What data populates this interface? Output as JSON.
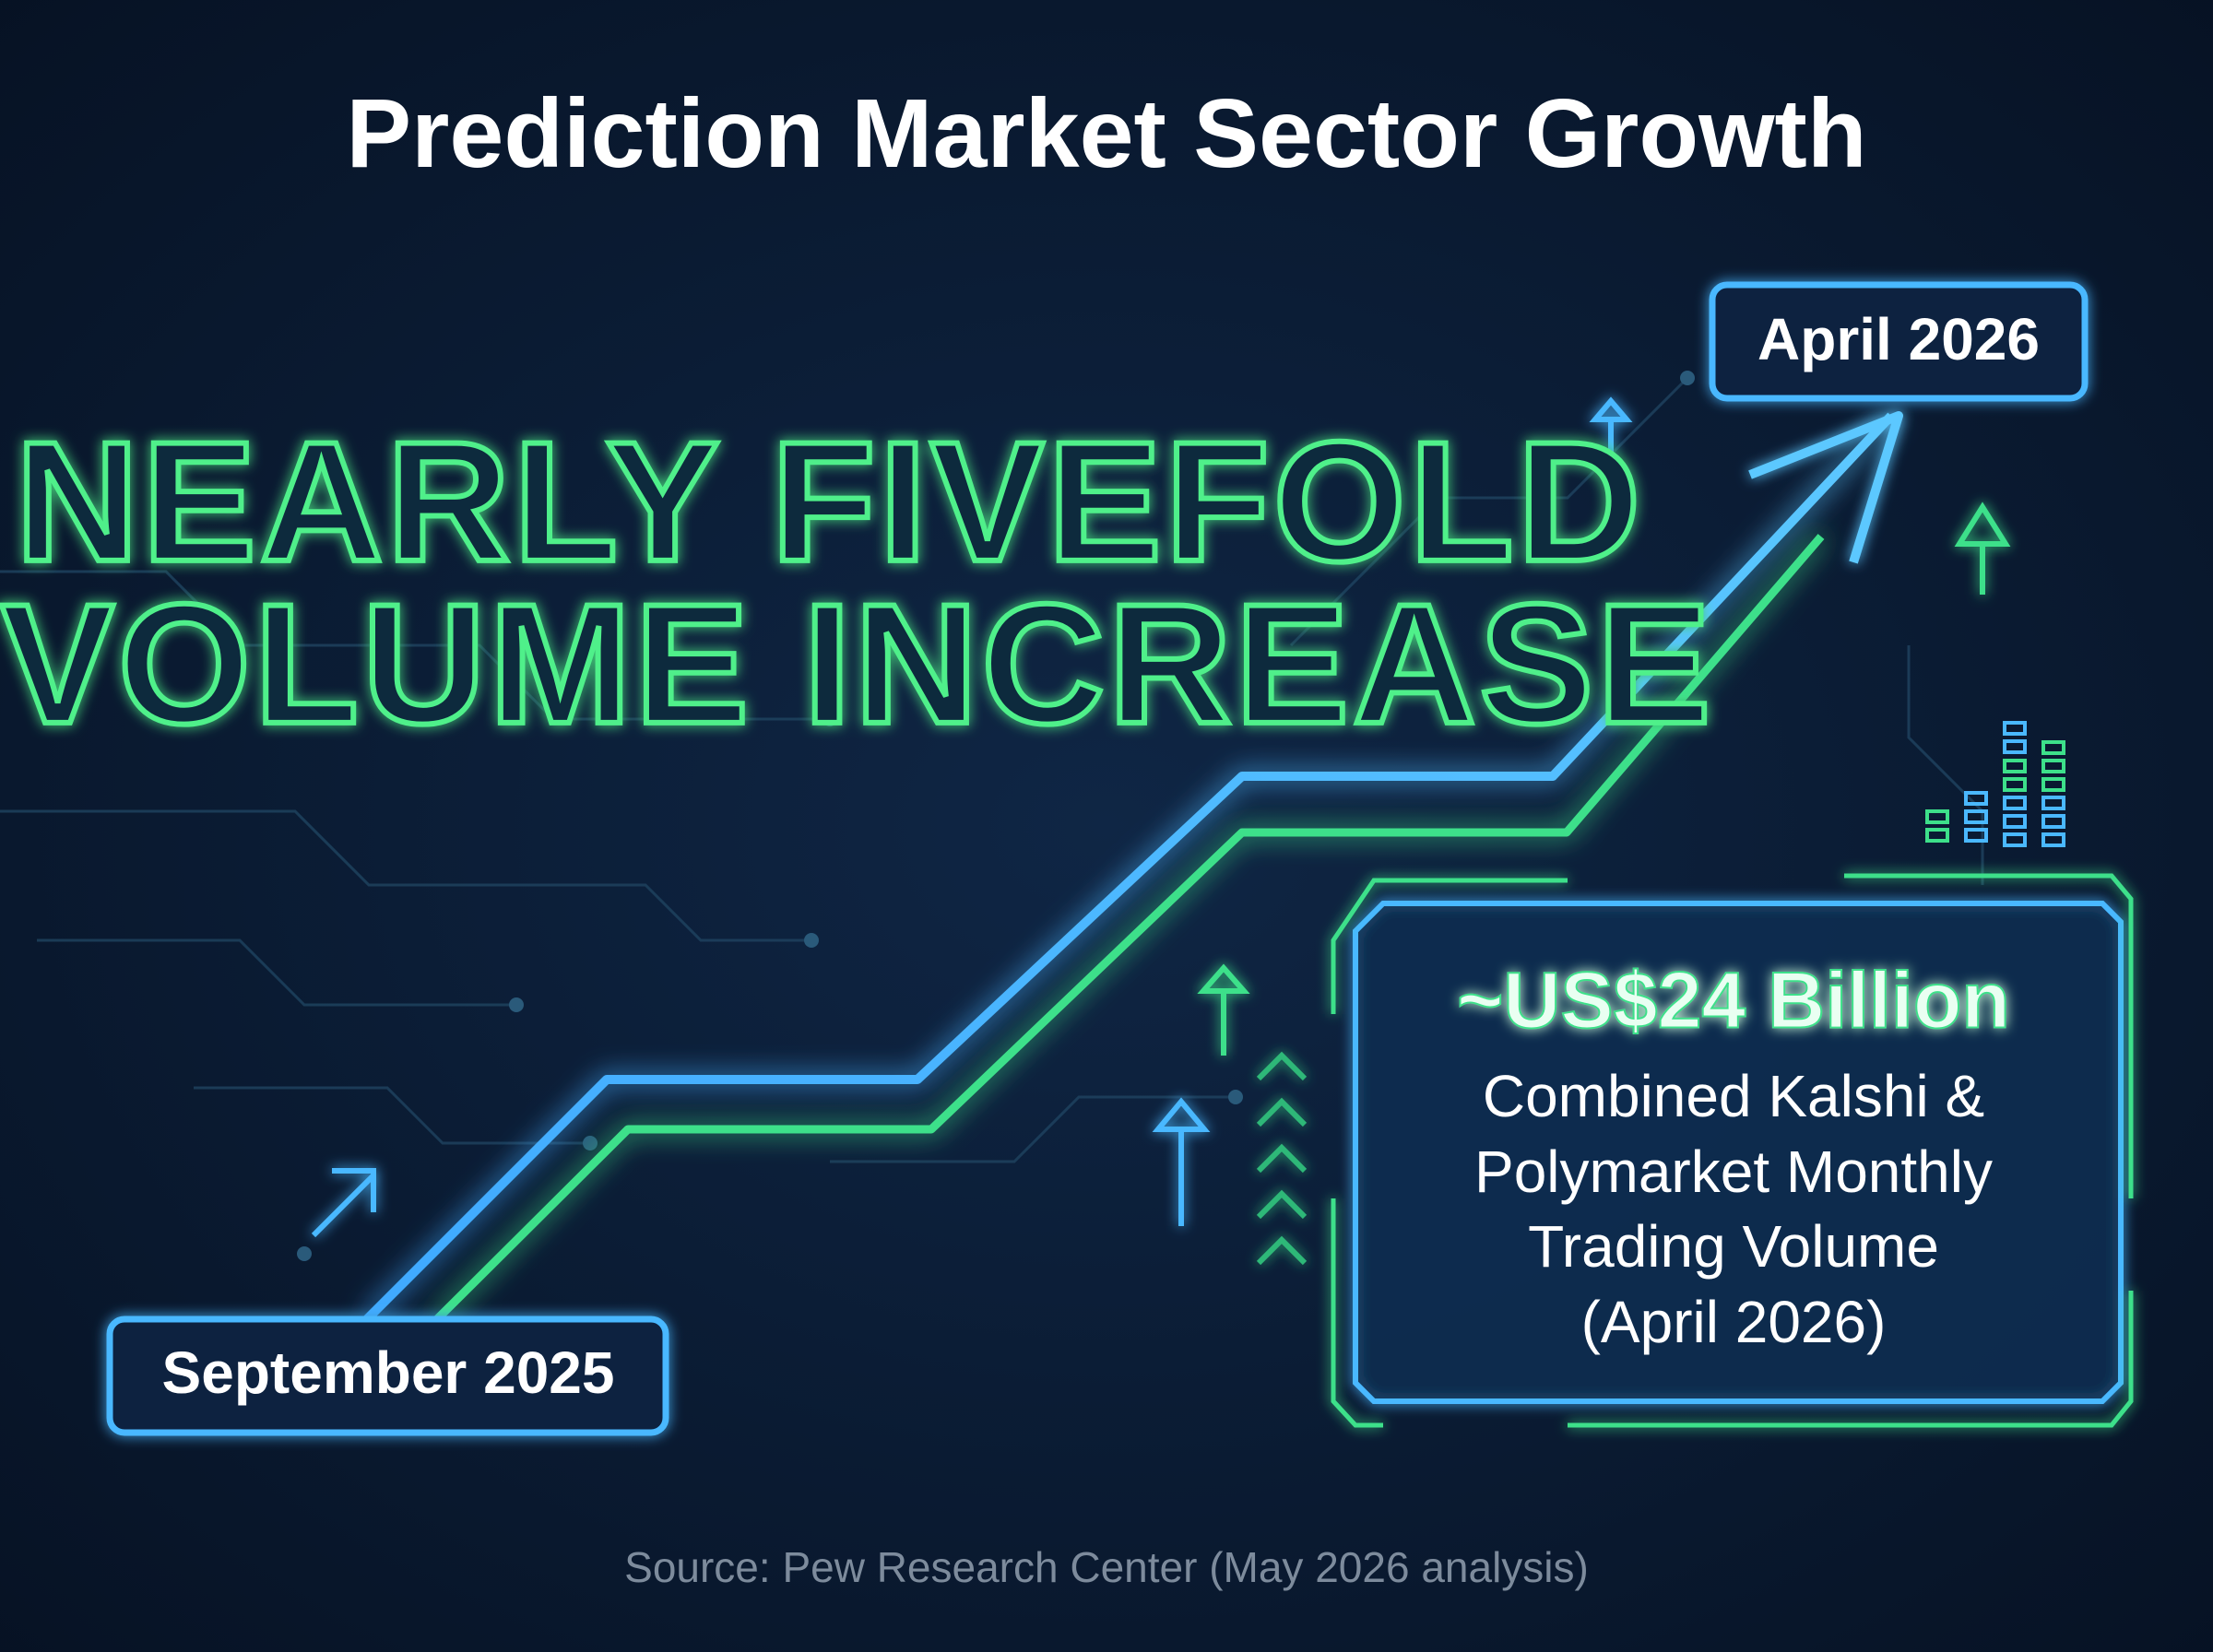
{
  "title": "Prediction Market Sector Growth",
  "headline": {
    "lines": [
      "NEARLY FIVEFOLD",
      "VOLUME INCREASE"
    ]
  },
  "timeline": {
    "start_label": "September 2025",
    "end_label": "April 2026"
  },
  "callout": {
    "value": "~US$24 Billion",
    "description_lines": [
      "Combined Kalshi &",
      "Polymarket Monthly",
      "Trading Volume",
      "(April 2026)"
    ]
  },
  "source": "Source: Pew Research Center (May 2026 analysis)"
}
